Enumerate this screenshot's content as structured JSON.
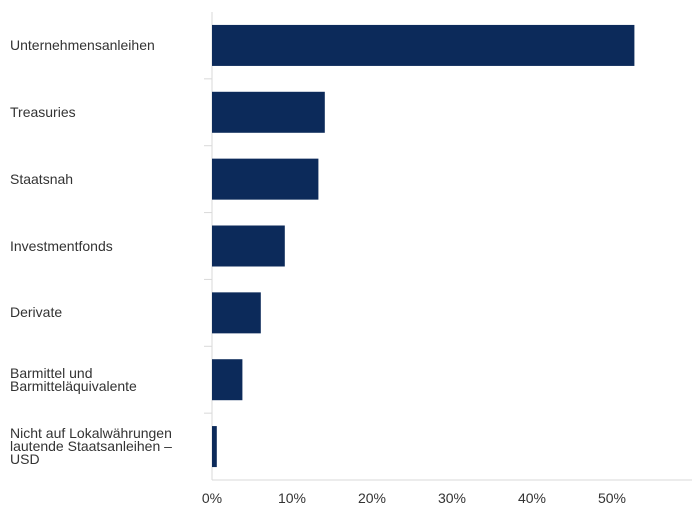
{
  "chart_data": {
    "type": "bar",
    "orientation": "horizontal",
    "categories": [
      "Unternehmensanleihen",
      "Treasuries",
      "Staatsnah",
      "Investmentfonds",
      "Derivate",
      "Barmittel und\nBarmitteläquivalente",
      "Nicht auf Lokalwährungen\nlautende Staatsanleihen –\nUSD"
    ],
    "values": [
      52.8,
      14.1,
      13.3,
      9.1,
      6.1,
      3.8,
      0.6
    ],
    "xlim": [
      0,
      60
    ],
    "xticks": [
      "0%",
      "10%",
      "20%",
      "30%",
      "40%",
      "50%"
    ],
    "xtick_values": [
      0,
      10,
      20,
      30,
      40,
      50
    ],
    "title": "",
    "xlabel": "",
    "ylabel": "",
    "grid": false,
    "legend": "none",
    "bar_color": "#0c2a5a",
    "axis_color": "#d9d9d9"
  }
}
